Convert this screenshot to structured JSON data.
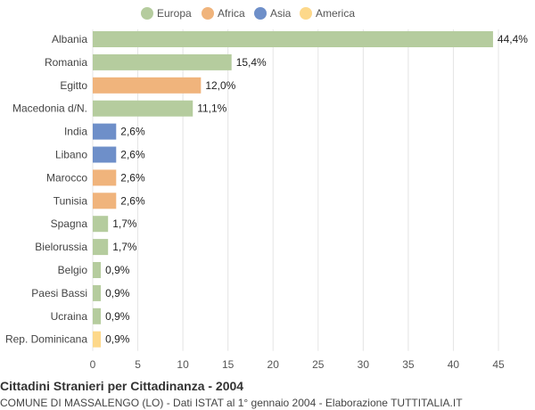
{
  "chart_data": {
    "type": "bar",
    "orientation": "horizontal",
    "title": "Cittadini Stranieri per Cittadinanza - 2004",
    "subtitle": "COMUNE DI MASSALENGO (LO) - Dati ISTAT al 1° gennaio 2004 - Elaborazione TUTTITALIA.IT",
    "legend_position": "top",
    "legend": [
      {
        "name": "Europa",
        "color": "#b5cc9e"
      },
      {
        "name": "Africa",
        "color": "#f0b47c"
      },
      {
        "name": "Asia",
        "color": "#6e8fc9"
      },
      {
        "name": "America",
        "color": "#fdd88a"
      }
    ],
    "categories": [
      "Albania",
      "Romania",
      "Egitto",
      "Macedonia d/N.",
      "India",
      "Libano",
      "Marocco",
      "Tunisia",
      "Spagna",
      "Bielorussia",
      "Belgio",
      "Paesi Bassi",
      "Ucraina",
      "Rep. Dominicana"
    ],
    "values": [
      44.4,
      15.4,
      12.0,
      11.1,
      2.6,
      2.6,
      2.6,
      2.6,
      1.7,
      1.7,
      0.9,
      0.9,
      0.9,
      0.9
    ],
    "value_labels": [
      "44,4%",
      "15,4%",
      "12,0%",
      "11,1%",
      "2,6%",
      "2,6%",
      "2,6%",
      "2,6%",
      "1,7%",
      "1,7%",
      "0,9%",
      "0,9%",
      "0,9%",
      "0,9%"
    ],
    "groups": [
      "Europa",
      "Europa",
      "Africa",
      "Europa",
      "Asia",
      "Asia",
      "Africa",
      "Africa",
      "Europa",
      "Europa",
      "Europa",
      "Europa",
      "Europa",
      "America"
    ],
    "xlim": [
      0,
      45
    ],
    "xticks": [
      0,
      5,
      10,
      15,
      20,
      25,
      30,
      35,
      40,
      45
    ],
    "grid": true
  }
}
